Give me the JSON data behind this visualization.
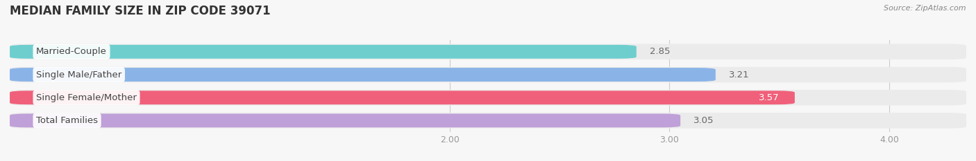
{
  "title": "MEDIAN FAMILY SIZE IN ZIP CODE 39071",
  "source": "Source: ZipAtlas.com",
  "categories": [
    "Married-Couple",
    "Single Male/Father",
    "Single Female/Mother",
    "Total Families"
  ],
  "values": [
    2.85,
    3.21,
    3.57,
    3.05
  ],
  "bar_colors": [
    "#6ecece",
    "#8ab4e8",
    "#f0607a",
    "#c0a0d8"
  ],
  "bar_bg_colors": [
    "#ebebeb",
    "#ebebeb",
    "#ebebeb",
    "#ebebeb"
  ],
  "xlim": [
    0.0,
    4.35
  ],
  "xticks": [
    2.0,
    3.0,
    4.0
  ],
  "xtick_labels": [
    "2.00",
    "3.00",
    "4.00"
  ],
  "label_fontsize": 9.5,
  "title_fontsize": 12,
  "value_fontsize": 9.5,
  "background_color": "#f7f7f7"
}
